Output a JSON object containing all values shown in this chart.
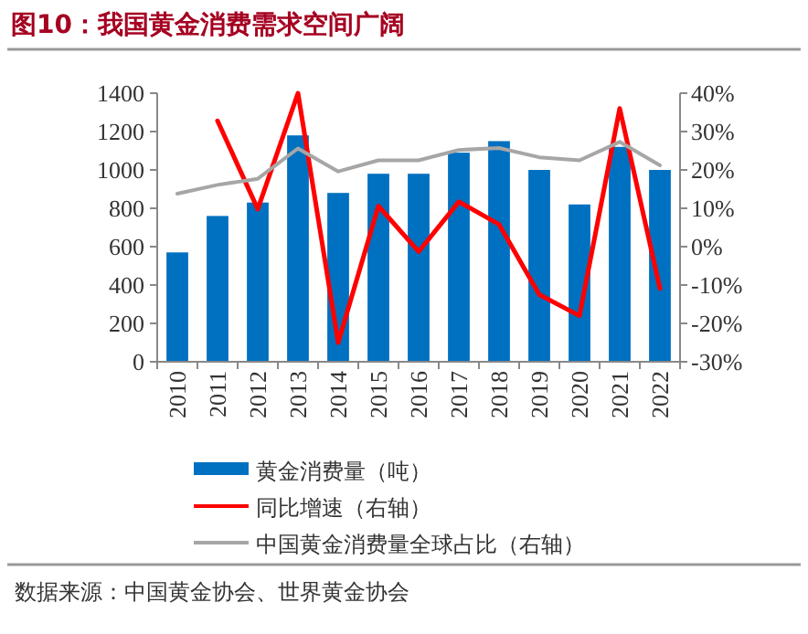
{
  "chart_data": {
    "type": "bar",
    "title": "图10：我国黄金消费需求空间广阔",
    "categories": [
      "2010",
      "2011",
      "2012",
      "2013",
      "2014",
      "2015",
      "2016",
      "2017",
      "2018",
      "2019",
      "2020",
      "2021",
      "2022"
    ],
    "series": [
      {
        "name": "黄金消费量（吨）",
        "color": "#0070c0",
        "values": [
          570,
          760,
          830,
          1180,
          880,
          980,
          980,
          1090,
          1150,
          1000,
          820,
          1120,
          1000
        ]
      },
      {
        "name": "同比增速（右轴）",
        "type": "line",
        "axis": "y2",
        "color": "#ff0000",
        "values": [
          null,
          32.8,
          9.8,
          40,
          -25,
          10.6,
          -1.3,
          11.7,
          5.8,
          -12.5,
          -18,
          36,
          -10.9
        ]
      },
      {
        "name": "中国黄金消费量全球占比（右轴）",
        "type": "line",
        "axis": "y2",
        "color": "#a6a6a6",
        "values": [
          13.8,
          16.1,
          17.7,
          25.6,
          19.6,
          22.5,
          22.5,
          25.2,
          25.7,
          23.3,
          22.5,
          27.3,
          21.2
        ]
      }
    ],
    "ylim": [
      0,
      1400
    ],
    "yticks": [
      0,
      200,
      400,
      600,
      800,
      1000,
      1200,
      1400
    ],
    "y2lim": [
      -30,
      40
    ],
    "y2ticks": [
      {
        "value": -30,
        "label": "-30%"
      },
      {
        "value": -20,
        "label": "-20%"
      },
      {
        "value": -10,
        "label": "-10%"
      },
      {
        "value": 0,
        "label": "0%"
      },
      {
        "value": 10,
        "label": "10%"
      },
      {
        "value": 20,
        "label": "20%"
      },
      {
        "value": 30,
        "label": "30%"
      },
      {
        "value": 40,
        "label": "40%"
      }
    ],
    "legend": "bottom",
    "grid": false,
    "annotations": [
      "数据来源：中国黄金协会、世界黄金协会"
    ]
  }
}
